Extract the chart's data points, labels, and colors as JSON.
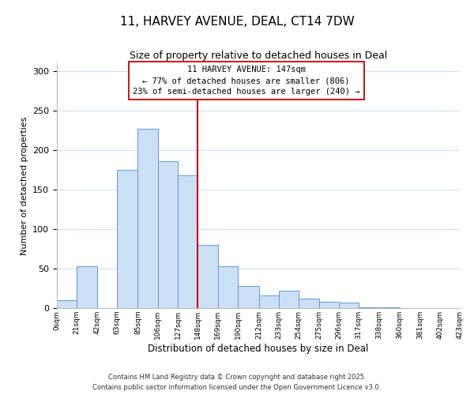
{
  "title": "11, HARVEY AVENUE, DEAL, CT14 7DW",
  "subtitle": "Size of property relative to detached houses in Deal",
  "xlabel": "Distribution of detached houses by size in Deal",
  "ylabel": "Number of detached properties",
  "bar_color": "#cce0f5",
  "bar_edge_color": "#5b9bd5",
  "background_color": "#ffffff",
  "grid_color": "#d0dff0",
  "vline_x": 148,
  "vline_color": "#cc0000",
  "annotation_title": "11 HARVEY AVENUE: 147sqm",
  "annotation_line1": "← 77% of detached houses are smaller (806)",
  "annotation_line2": "23% of semi-detached houses are larger (240) →",
  "bin_edges": [
    0,
    21,
    42,
    63,
    85,
    106,
    127,
    148,
    169,
    190,
    212,
    233,
    254,
    275,
    296,
    317,
    338,
    360,
    381,
    402,
    423
  ],
  "bin_counts": [
    10,
    53,
    0,
    175,
    227,
    186,
    168,
    80,
    53,
    28,
    16,
    22,
    12,
    8,
    7,
    1,
    1,
    0,
    0,
    0
  ],
  "ylim": [
    0,
    310
  ],
  "yticks": [
    0,
    50,
    100,
    150,
    200,
    250,
    300
  ],
  "footer_line1": "Contains HM Land Registry data © Crown copyright and database right 2025.",
  "footer_line2": "Contains public sector information licensed under the Open Government Licence v3.0."
}
